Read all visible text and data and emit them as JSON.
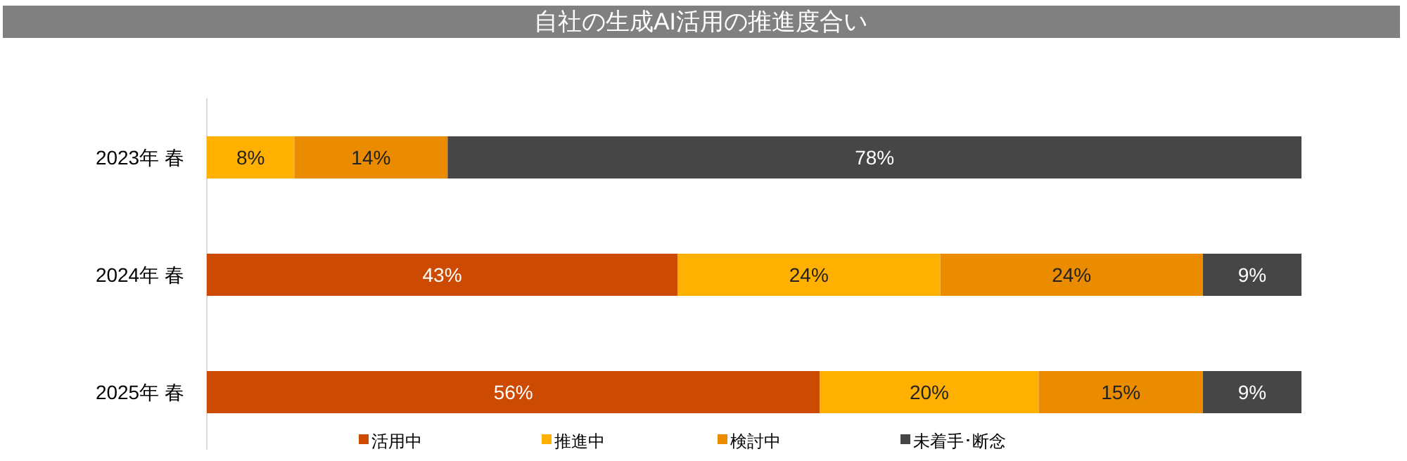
{
  "chart_data": {
    "type": "bar",
    "orientation": "horizontal",
    "stacked": true,
    "title": "自社の生成AI活用の推進度合い",
    "categories": [
      "2023年 春",
      "2024年 春",
      "2025年 春"
    ],
    "xlim": [
      0,
      100
    ],
    "tick_labels": "y",
    "legend": "bottom",
    "series": [
      {
        "name": "活用中",
        "color": "#cc4a02",
        "values": [
          0,
          43,
          56
        ],
        "value_labels": [
          null,
          "43%",
          "56%"
        ]
      },
      {
        "name": "推進中",
        "color": "#ffb000",
        "values": [
          8,
          24,
          20
        ],
        "value_labels": [
          "8%",
          "24%",
          "20%"
        ]
      },
      {
        "name": "検討中",
        "color": "#eb8b00",
        "values": [
          14,
          24,
          15
        ],
        "value_labels": [
          "14%",
          "24%",
          "15%"
        ]
      },
      {
        "name": "未着手･断念",
        "color": "#464646",
        "values": [
          78,
          9,
          9
        ],
        "value_labels": [
          "78%",
          "9%",
          "9%"
        ]
      }
    ]
  }
}
